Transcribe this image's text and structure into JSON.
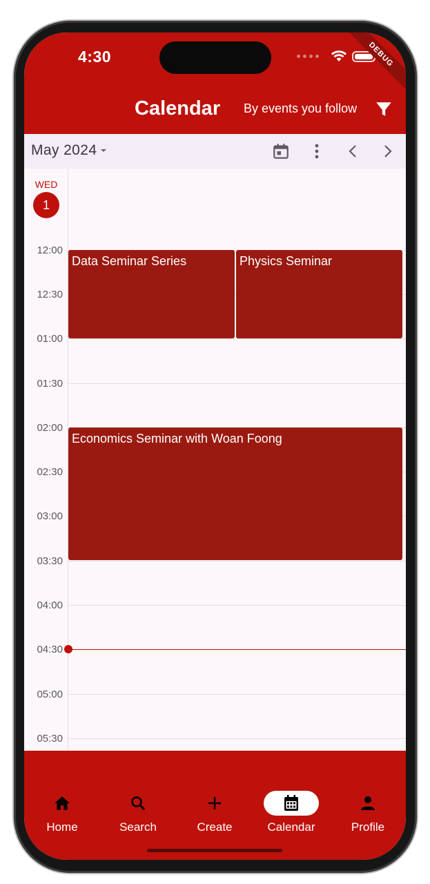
{
  "status_bar": {
    "time": "4:30",
    "debug_banner": "DEBUG"
  },
  "header": {
    "title": "Calendar",
    "subtitle": "By events you follow",
    "filter_icon": "filter-icon"
  },
  "toolbar": {
    "month_label": "May 2024",
    "icons": [
      "calendar-today-icon",
      "more-vert-icon",
      "chevron-left-icon",
      "chevron-right-icon"
    ]
  },
  "day": {
    "weekday": "WED",
    "date": "1"
  },
  "time_labels": [
    "12:00",
    "12:30",
    "01:00",
    "01:30",
    "02:00",
    "02:30",
    "03:00",
    "03:30",
    "04:00",
    "04:30",
    "05:00",
    "05:30"
  ],
  "events": [
    {
      "title": "Data Seminar Series"
    },
    {
      "title": "Physics Seminar"
    },
    {
      "title": "Economics Seminar with Woan Foong"
    }
  ],
  "current_time": "04:30",
  "bottom_nav": [
    {
      "label": "Home",
      "icon": "home-icon"
    },
    {
      "label": "Search",
      "icon": "search-icon"
    },
    {
      "label": "Create",
      "icon": "plus-icon"
    },
    {
      "label": "Calendar",
      "icon": "calendar-icon",
      "active": true
    },
    {
      "label": "Profile",
      "icon": "person-icon"
    }
  ],
  "colors": {
    "primary": "#be110b",
    "event": "#9a1a11",
    "surface": "#fcf7fa",
    "toolbar": "#f2edf7"
  }
}
